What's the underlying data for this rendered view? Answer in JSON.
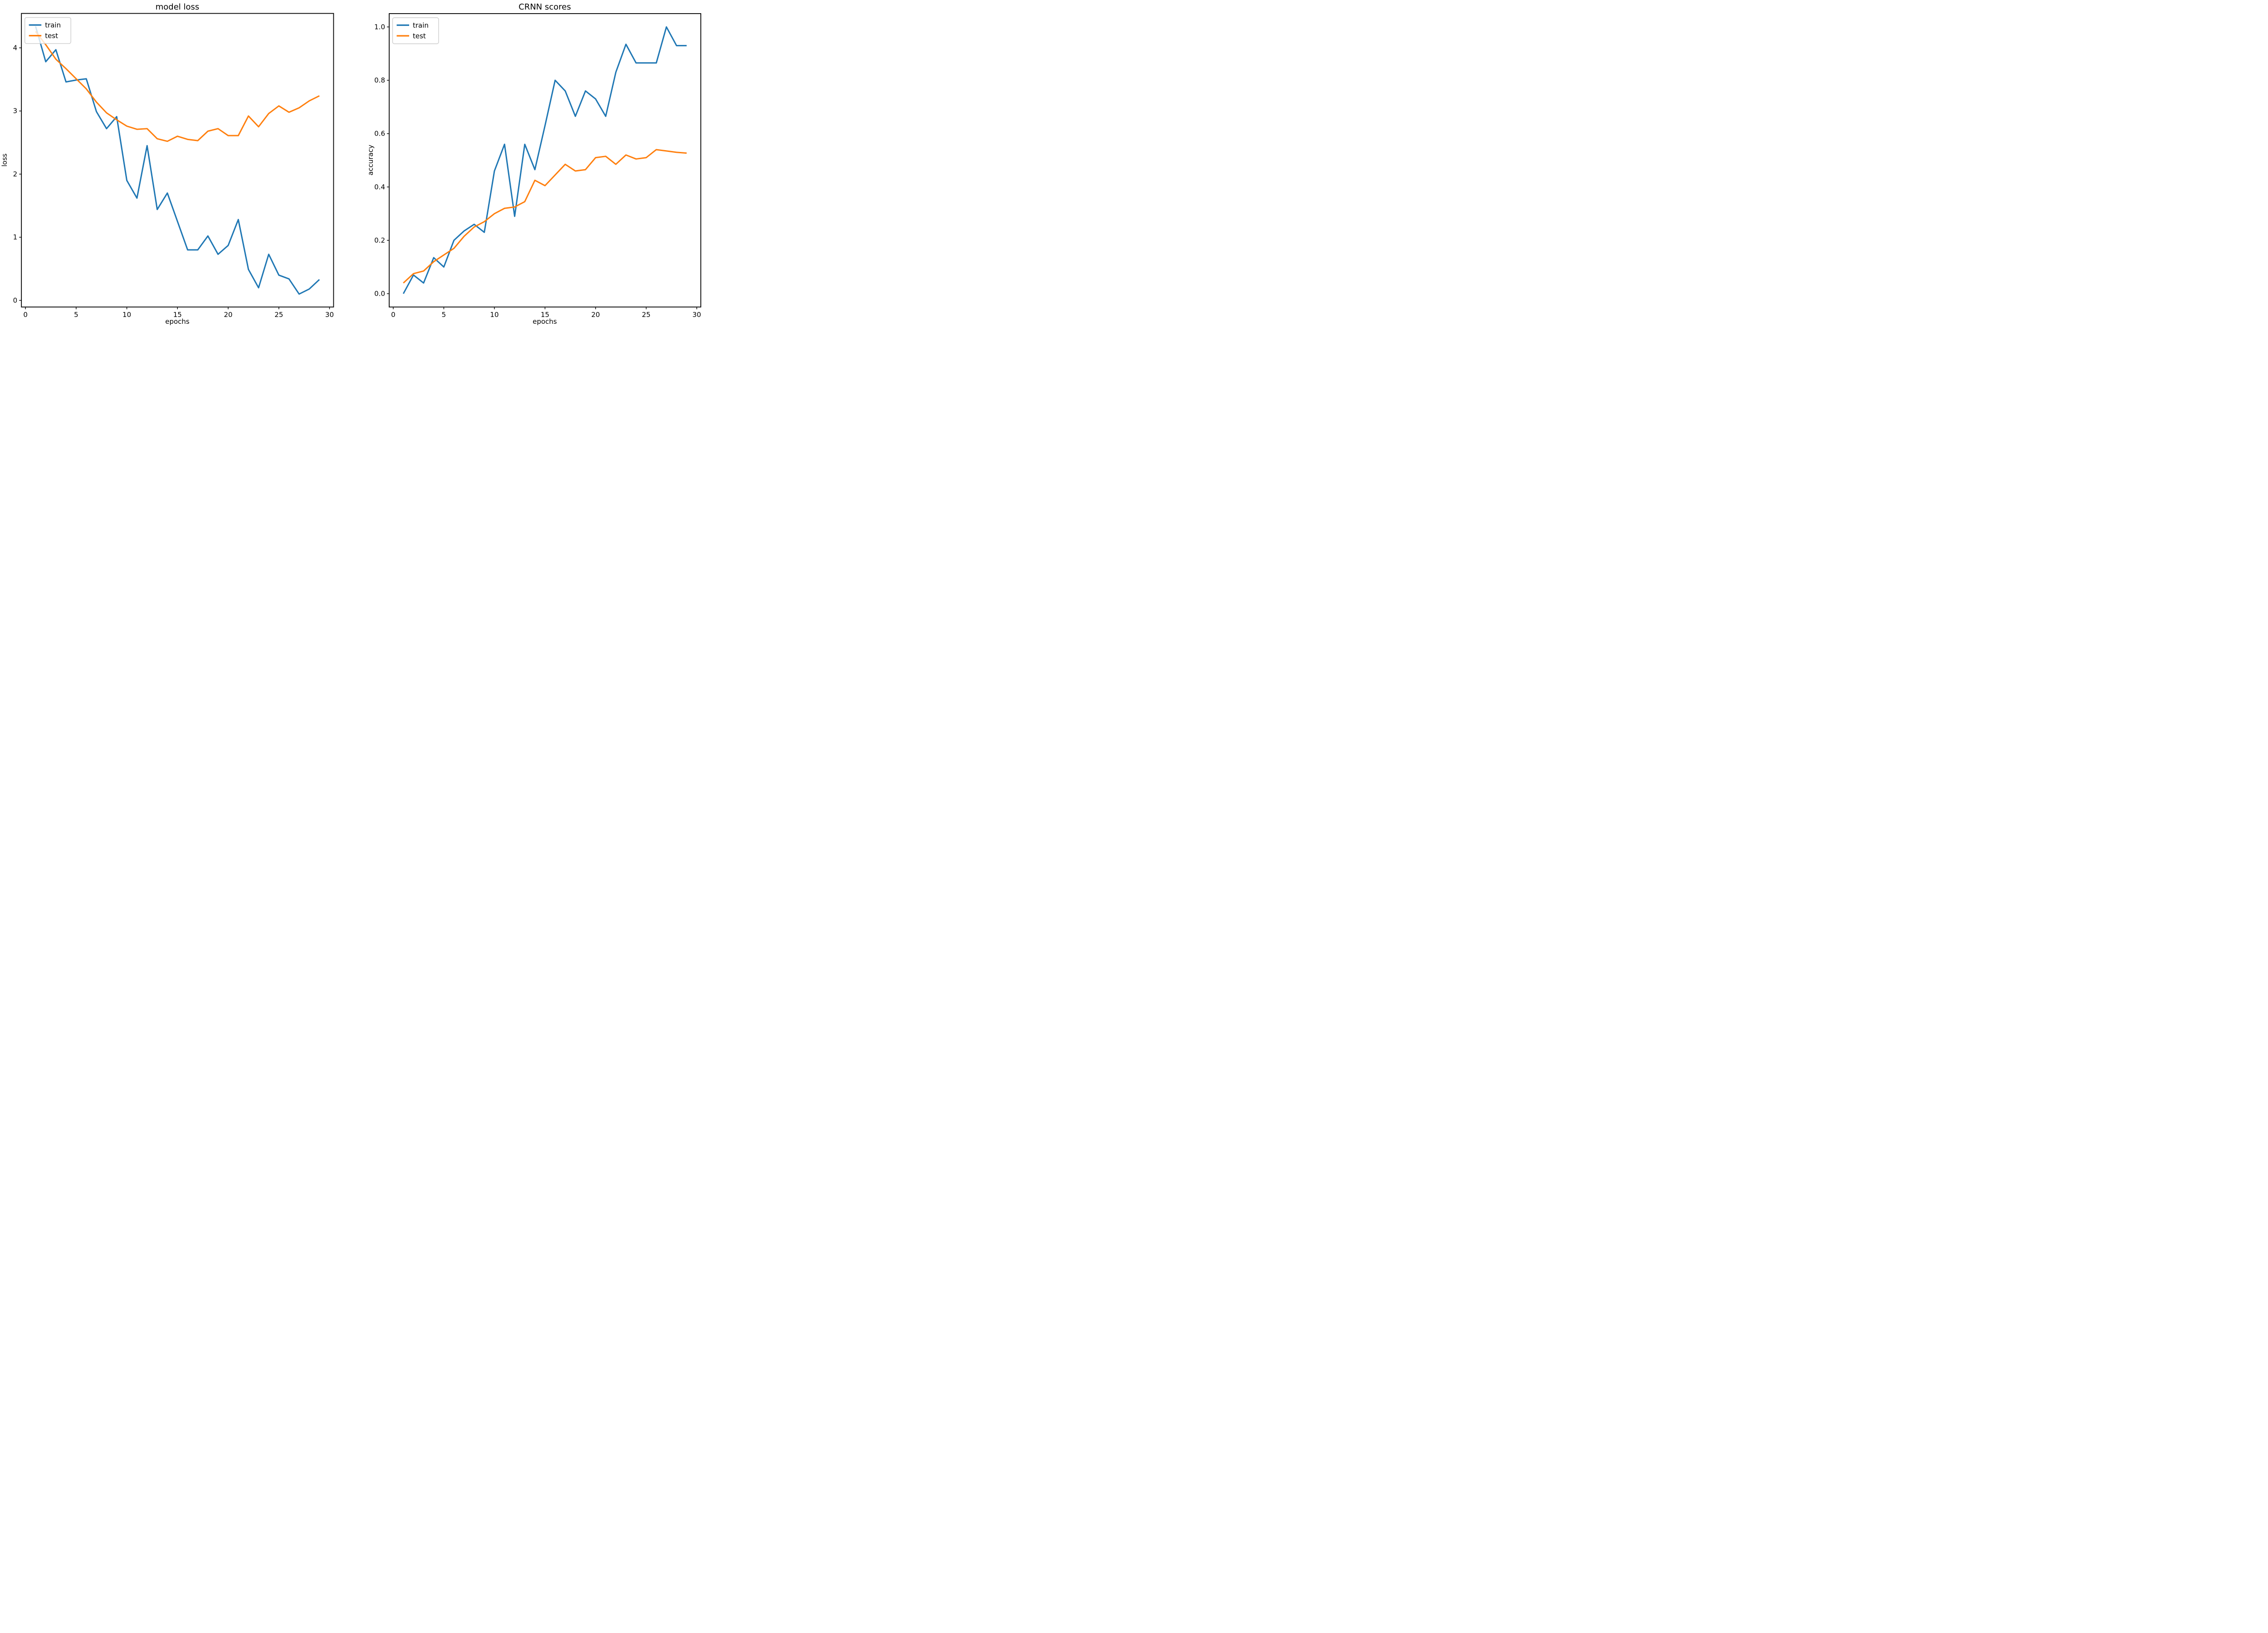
{
  "figure": {
    "background": "#ffffff",
    "line_colors": {
      "train": "#1f77b4",
      "test": "#ff7f0e"
    },
    "spine_color": "#000000",
    "legend_border_color": "#cccccc"
  },
  "chart_data": [
    {
      "type": "line",
      "title": "model loss",
      "xlabel": "epochs",
      "ylabel": "loss",
      "xlim": [
        -0.4,
        30.4
      ],
      "ylim": [
        -0.105,
        4.545
      ],
      "xticks": [
        0,
        5,
        10,
        15,
        20,
        25,
        30
      ],
      "xtick_labels": [
        "0",
        "5",
        "10",
        "15",
        "20",
        "25",
        "30"
      ],
      "yticks": [
        0,
        1,
        2,
        3,
        4
      ],
      "ytick_labels": [
        "0",
        "1",
        "2",
        "3",
        "4"
      ],
      "grid": false,
      "legend_position": "upper-left",
      "x": [
        1,
        2,
        3,
        4,
        5,
        6,
        7,
        8,
        9,
        10,
        11,
        12,
        13,
        14,
        15,
        16,
        17,
        18,
        19,
        20,
        21,
        22,
        23,
        24,
        25,
        26,
        27,
        28,
        29
      ],
      "series": [
        {
          "name": "train",
          "color": "#1f77b4",
          "values": [
            4.34,
            3.78,
            3.97,
            3.46,
            3.49,
            3.51,
            2.99,
            2.72,
            2.91,
            1.9,
            1.62,
            2.45,
            1.44,
            1.7,
            1.25,
            0.8,
            0.8,
            1.02,
            0.73,
            0.87,
            1.28,
            0.49,
            0.2,
            0.73,
            0.4,
            0.34,
            0.1,
            0.18,
            0.33
          ]
        },
        {
          "name": "test",
          "color": "#ff7f0e",
          "values": [
            4.26,
            4.05,
            3.82,
            3.67,
            3.51,
            3.35,
            3.14,
            2.97,
            2.86,
            2.76,
            2.71,
            2.72,
            2.56,
            2.52,
            2.6,
            2.55,
            2.53,
            2.68,
            2.72,
            2.61,
            2.61,
            2.92,
            2.75,
            2.96,
            3.08,
            2.98,
            3.05,
            3.16,
            3.24
          ]
        }
      ]
    },
    {
      "type": "line",
      "title": "CRNN scores",
      "xlabel": "epochs",
      "ylabel": "accuracy",
      "xlim": [
        -0.4,
        30.4
      ],
      "ylim": [
        -0.05,
        1.05
      ],
      "xticks": [
        0,
        5,
        10,
        15,
        20,
        25,
        30
      ],
      "xtick_labels": [
        "0",
        "5",
        "10",
        "15",
        "20",
        "25",
        "30"
      ],
      "yticks": [
        0.0,
        0.2,
        0.4,
        0.6,
        0.8,
        1.0
      ],
      "ytick_labels": [
        "0.0",
        "0.2",
        "0.4",
        "0.6",
        "0.8",
        "1.0"
      ],
      "grid": false,
      "legend_position": "upper-left",
      "x": [
        1,
        2,
        3,
        4,
        5,
        6,
        7,
        8,
        9,
        10,
        11,
        12,
        13,
        14,
        15,
        16,
        17,
        18,
        19,
        20,
        21,
        22,
        23,
        24,
        25,
        26,
        27,
        28,
        29
      ],
      "series": [
        {
          "name": "train",
          "color": "#1f77b4",
          "values": [
            0.0,
            0.07,
            0.04,
            0.135,
            0.1,
            0.2,
            0.235,
            0.26,
            0.23,
            0.46,
            0.56,
            0.29,
            0.56,
            0.465,
            0.63,
            0.8,
            0.76,
            0.665,
            0.76,
            0.73,
            0.665,
            0.83,
            0.935,
            0.865,
            0.865,
            0.865,
            1.0,
            0.93,
            0.93
          ]
        },
        {
          "name": "test",
          "color": "#ff7f0e",
          "values": [
            0.04,
            0.075,
            0.085,
            0.12,
            0.145,
            0.17,
            0.215,
            0.25,
            0.27,
            0.3,
            0.32,
            0.325,
            0.345,
            0.425,
            0.405,
            0.445,
            0.485,
            0.46,
            0.465,
            0.51,
            0.515,
            0.485,
            0.52,
            0.505,
            0.51,
            0.54,
            0.535,
            0.53,
            0.527
          ]
        }
      ]
    }
  ],
  "legend": {
    "train_label": "train",
    "test_label": "test"
  }
}
